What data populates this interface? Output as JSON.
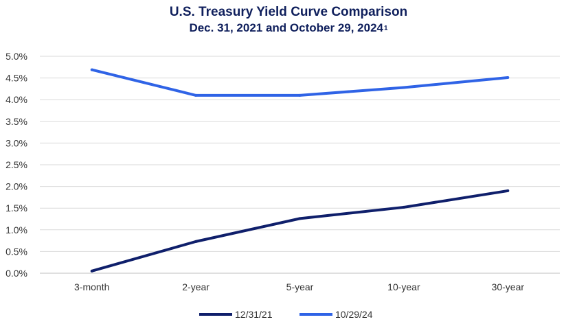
{
  "chart_data": {
    "type": "line",
    "title": "U.S. Treasury Yield Curve Comparison",
    "subtitle": "Dec. 31, 2021 and October 29, 2024",
    "subtitle_superscript": "1",
    "categories": [
      "3-month",
      "2-year",
      "5-year",
      "10-year",
      "30-year"
    ],
    "series": [
      {
        "name": "12/31/21",
        "color": "#0f1f6b",
        "values": [
          0.05,
          0.73,
          1.26,
          1.52,
          1.9
        ]
      },
      {
        "name": "10/29/24",
        "color": "#2f63e6",
        "values": [
          4.69,
          4.1,
          4.1,
          4.28,
          4.51
        ]
      }
    ],
    "y_ticks": [
      "0.0%",
      "0.5%",
      "1.0%",
      "1.5%",
      "2.0%",
      "2.5%",
      "3.0%",
      "3.5%",
      "4.0%",
      "4.5%",
      "5.0%"
    ],
    "ylim": [
      0,
      5
    ],
    "grid": true,
    "legend": "bottom"
  }
}
